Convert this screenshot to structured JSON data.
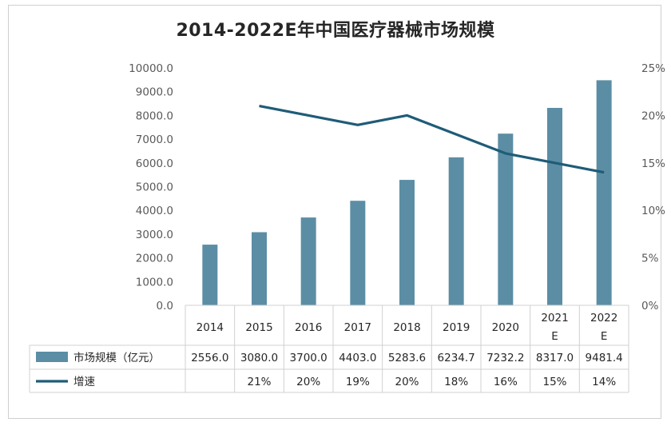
{
  "chart_data": {
    "type": "bar+line",
    "title": "2014-2022E年中国医疗器械市场规模",
    "categories": [
      "2014",
      "2015",
      "2016",
      "2017",
      "2018",
      "2019",
      "2020",
      "2021E",
      "2022E"
    ],
    "category_labels": [
      [
        "2014"
      ],
      [
        "2015"
      ],
      [
        "2016"
      ],
      [
        "2017"
      ],
      [
        "2018"
      ],
      [
        "2019"
      ],
      [
        "2020"
      ],
      [
        "2021",
        "E"
      ],
      [
        "2022",
        "E"
      ]
    ],
    "series": [
      {
        "name": "市场规模（亿元）",
        "type": "bar",
        "axis": "left",
        "color": "#5b8ea4",
        "values": [
          2556.0,
          3080.0,
          3700.0,
          4403.0,
          5283.6,
          6234.7,
          7232.2,
          8317.0,
          9481.4
        ],
        "table_values": [
          "2556.0",
          "3080.0",
          "3700.0",
          "4403.0",
          "5283.6",
          "6234.7",
          "7232.2",
          "8317.0",
          "9481.4"
        ]
      },
      {
        "name": "增速",
        "type": "line",
        "axis": "right",
        "color": "#1f5c78",
        "values": [
          null,
          21,
          20,
          19,
          20,
          18,
          16,
          15,
          14
        ],
        "table_values": [
          "",
          "21%",
          "20%",
          "19%",
          "20%",
          "18%",
          "16%",
          "15%",
          "14%"
        ]
      }
    ],
    "y_left": {
      "range": [
        0,
        10000
      ],
      "ticks": [
        "0.0",
        "1000.0",
        "2000.0",
        "3000.0",
        "4000.0",
        "5000.0",
        "6000.0",
        "7000.0",
        "8000.0",
        "9000.0",
        "10000.0"
      ]
    },
    "y_right": {
      "range": [
        0,
        25
      ],
      "ticks": [
        "0%",
        "5%",
        "10%",
        "15%",
        "20%",
        "25%"
      ]
    },
    "grid": false,
    "legend": "data-table"
  }
}
